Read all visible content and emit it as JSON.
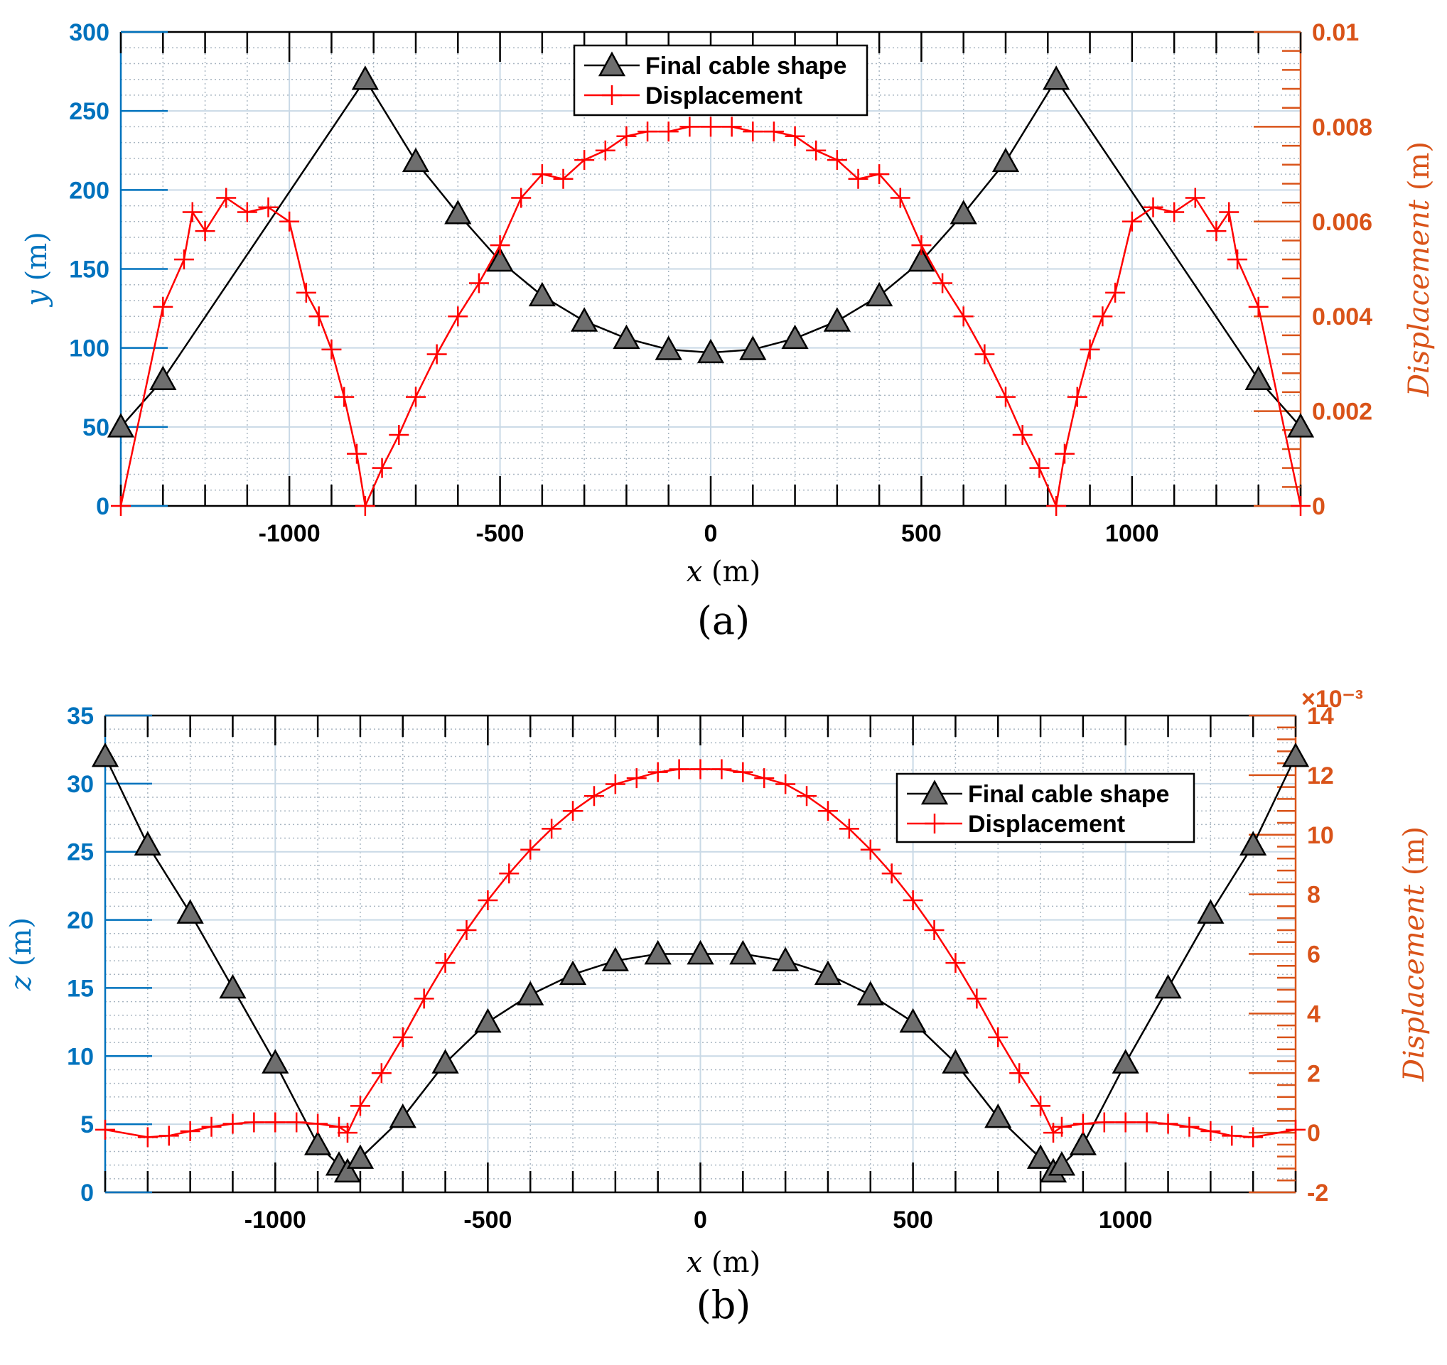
{
  "colors": {
    "left_axis": "#0072BD",
    "right_axis": "#D95319",
    "cable": "#000000",
    "marker_fill": "#6E6E6E",
    "displacement": "#FF0000",
    "grid_major": "#C9D9E6",
    "grid_minor": "#A9B6C2"
  },
  "chart_data": [
    {
      "type": "line",
      "panel_label": "(a)",
      "xlabel_var": "x",
      "xlabel_unit": "(m)",
      "ylabel_var": "y",
      "ylabel_unit": "(m)",
      "y2label_var": "Displacement",
      "y2label_unit": "(m)",
      "xlim": [
        -1400,
        1400
      ],
      "ylim": [
        0,
        300
      ],
      "y2lim": [
        0,
        0.01
      ],
      "x_ticks": [
        -1000,
        -500,
        0,
        500,
        1000
      ],
      "x_tick_labels": [
        "-1000",
        "-500",
        "0",
        "500",
        "1000"
      ],
      "y_ticks": [
        0,
        50,
        100,
        150,
        200,
        250,
        300
      ],
      "y_tick_labels": [
        "0",
        "50",
        "100",
        "150",
        "200",
        "250",
        "300"
      ],
      "y2_ticks": [
        0,
        0.002,
        0.004,
        0.006,
        0.008,
        0.01
      ],
      "y2_tick_labels": [
        "0",
        "0.002",
        "0.004",
        "0.006",
        "0.008",
        "0.01"
      ],
      "y2_exponent": "",
      "grid": true,
      "legend_position": "top-center",
      "legend": [
        "Final cable shape",
        "Displacement"
      ],
      "series": [
        {
          "name": "Final cable shape",
          "axis": "left",
          "x": [
            -1400,
            -1300,
            -820,
            -700,
            -600,
            -500,
            -400,
            -300,
            -200,
            -100,
            0,
            100,
            200,
            300,
            400,
            500,
            600,
            700,
            820,
            1300,
            1400
          ],
          "y": [
            50,
            80,
            270,
            218,
            185,
            155,
            133,
            117,
            106,
            99,
            97,
            99,
            106,
            117,
            133,
            155,
            185,
            218,
            270,
            80,
            50
          ]
        },
        {
          "name": "Displacement",
          "axis": "right",
          "x": [
            -1400,
            -1300,
            -1250,
            -1230,
            -1200,
            -1150,
            -1100,
            -1050,
            -1000,
            -960,
            -930,
            -900,
            -870,
            -840,
            -820,
            -780,
            -740,
            -700,
            -650,
            -600,
            -550,
            -500,
            -450,
            -400,
            -350,
            -300,
            -250,
            -200,
            -150,
            -100,
            -50,
            0,
            50,
            100,
            150,
            200,
            250,
            300,
            350,
            400,
            450,
            500,
            550,
            600,
            650,
            700,
            740,
            780,
            820,
            840,
            870,
            900,
            930,
            960,
            1000,
            1050,
            1100,
            1150,
            1200,
            1230,
            1250,
            1300,
            1400
          ],
          "y": [
            0,
            0.0042,
            0.0052,
            0.0062,
            0.0058,
            0.0065,
            0.0062,
            0.0063,
            0.006,
            0.0045,
            0.004,
            0.0033,
            0.0023,
            0.0011,
            0,
            0.0008,
            0.0015,
            0.0023,
            0.0032,
            0.004,
            0.0047,
            0.0055,
            0.0065,
            0.007,
            0.0069,
            0.0073,
            0.0075,
            0.0078,
            0.0079,
            0.0079,
            0.008,
            0.008,
            0.008,
            0.0079,
            0.0079,
            0.0078,
            0.0075,
            0.0073,
            0.0069,
            0.007,
            0.0065,
            0.0055,
            0.0047,
            0.004,
            0.0032,
            0.0023,
            0.0015,
            0.0008,
            0,
            0.0011,
            0.0023,
            0.0033,
            0.004,
            0.0045,
            0.006,
            0.0063,
            0.0062,
            0.0065,
            0.0058,
            0.0062,
            0.0052,
            0.0042,
            0
          ]
        }
      ]
    },
    {
      "type": "line",
      "panel_label": "(b)",
      "xlabel_var": "x",
      "xlabel_unit": "(m)",
      "ylabel_var": "z",
      "ylabel_unit": "(m)",
      "y2label_var": "Displacement",
      "y2label_unit": "(m)",
      "xlim": [
        -1400,
        1400
      ],
      "ylim": [
        0,
        35
      ],
      "y2lim": [
        -2,
        14
      ],
      "x_ticks": [
        -1000,
        -500,
        0,
        500,
        1000
      ],
      "x_tick_labels": [
        "-1000",
        "-500",
        "0",
        "500",
        "1000"
      ],
      "y_ticks": [
        0,
        5,
        10,
        15,
        20,
        25,
        30,
        35
      ],
      "y_tick_labels": [
        "0",
        "5",
        "10",
        "15",
        "20",
        "25",
        "30",
        "35"
      ],
      "y2_ticks": [
        -2,
        0,
        2,
        4,
        6,
        8,
        10,
        12,
        14
      ],
      "y2_tick_labels": [
        "-2",
        "0",
        "2",
        "4",
        "6",
        "8",
        "10",
        "12",
        "14"
      ],
      "y2_exponent": "×10⁻³",
      "grid": true,
      "legend_position": "top-right",
      "legend": [
        "Final cable shape",
        "Displacement"
      ],
      "series": [
        {
          "name": "Final cable shape",
          "axis": "left",
          "x": [
            -1400,
            -1300,
            -1200,
            -1100,
            -1000,
            -900,
            -850,
            -830,
            -800,
            -700,
            -600,
            -500,
            -400,
            -300,
            -200,
            -100,
            0,
            100,
            200,
            300,
            400,
            500,
            600,
            700,
            800,
            830,
            850,
            900,
            1000,
            1100,
            1200,
            1300,
            1400
          ],
          "y": [
            32,
            25.5,
            20.5,
            15,
            9.5,
            3.5,
            2,
            1.5,
            2.5,
            5.5,
            9.5,
            12.5,
            14.5,
            16,
            17,
            17.5,
            17.5,
            17.5,
            17,
            16,
            14.5,
            12.5,
            9.5,
            5.5,
            2.5,
            1.5,
            2,
            3.5,
            9.5,
            15,
            20.5,
            25.5,
            32
          ]
        },
        {
          "name": "Displacement",
          "axis": "right",
          "x": [
            -1400,
            -1300,
            -1250,
            -1200,
            -1150,
            -1100,
            -1050,
            -1000,
            -950,
            -900,
            -850,
            -830,
            -800,
            -750,
            -700,
            -650,
            -600,
            -550,
            -500,
            -450,
            -400,
            -350,
            -300,
            -250,
            -200,
            -150,
            -100,
            -50,
            0,
            50,
            100,
            150,
            200,
            250,
            300,
            350,
            400,
            450,
            500,
            550,
            600,
            650,
            700,
            750,
            800,
            830,
            850,
            900,
            950,
            1000,
            1050,
            1100,
            1150,
            1200,
            1250,
            1300,
            1400
          ],
          "y": [
            0.1,
            -0.15,
            -0.1,
            0.05,
            0.2,
            0.3,
            0.35,
            0.35,
            0.35,
            0.3,
            0.2,
            0,
            0.9,
            2,
            3.2,
            4.5,
            5.7,
            6.8,
            7.8,
            8.7,
            9.5,
            10.2,
            10.8,
            11.3,
            11.7,
            11.9,
            12.1,
            12.2,
            12.2,
            12.2,
            12.1,
            11.9,
            11.7,
            11.3,
            10.8,
            10.2,
            9.5,
            8.7,
            7.8,
            6.8,
            5.7,
            4.5,
            3.2,
            2,
            0.9,
            0,
            0.2,
            0.3,
            0.35,
            0.35,
            0.35,
            0.3,
            0.2,
            0.05,
            -0.1,
            -0.15,
            0.1
          ]
        }
      ]
    }
  ]
}
